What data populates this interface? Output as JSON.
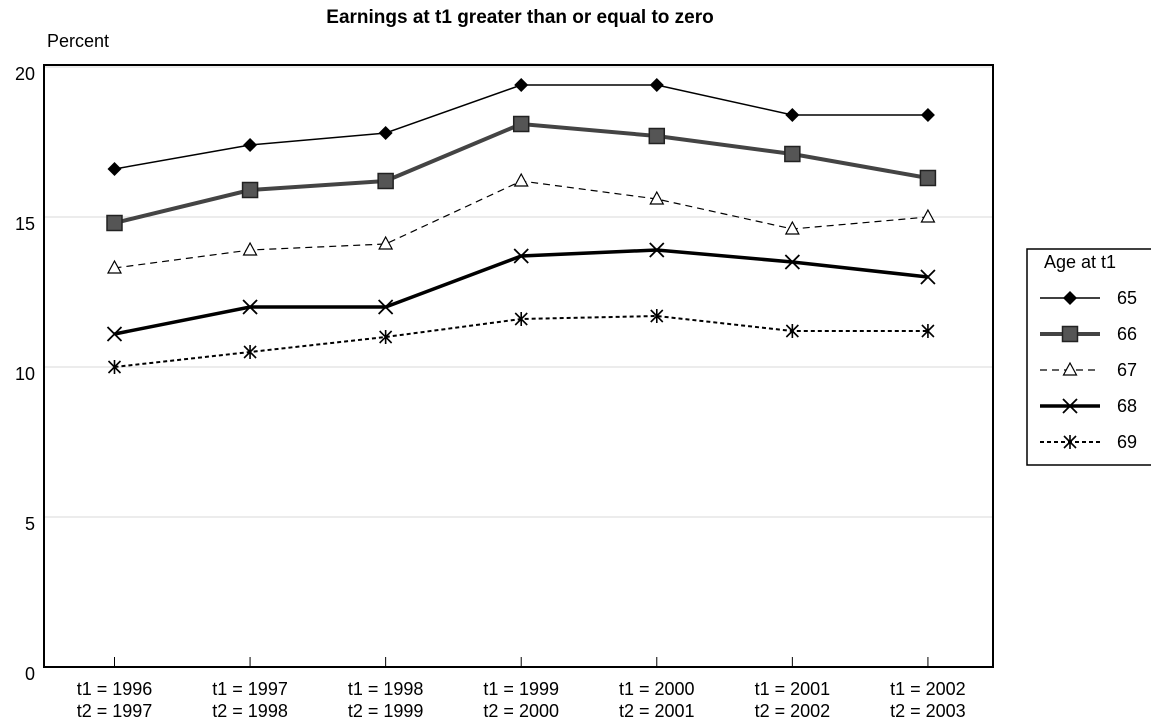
{
  "chart_data": {
    "type": "line",
    "title": "Earnings at t1 greater than or equal to zero",
    "y_label": "Percent",
    "categories": [
      [
        "t1 = 1996",
        "t2 = 1997"
      ],
      [
        "t1 = 1997",
        "t2 = 1998"
      ],
      [
        "t1 = 1998",
        "t2 = 1999"
      ],
      [
        "t1 = 1999",
        "t2 = 2000"
      ],
      [
        "t1 = 2000",
        "t2 = 2001"
      ],
      [
        "t1 = 2001",
        "t2 = 2002"
      ],
      [
        "t1 = 2002",
        "t2 = 2003"
      ]
    ],
    "ylim": [
      0,
      20
    ],
    "yticks": [
      0,
      5,
      10,
      15,
      20
    ],
    "grid": true,
    "legend_title": "Age at t1",
    "legend": "right",
    "series": [
      {
        "name": "65",
        "color": "#000000",
        "marker": "diamond",
        "line_style": "solid",
        "line_width": 1.5,
        "values": [
          16.6,
          17.4,
          17.8,
          19.4,
          19.4,
          18.4,
          18.4
        ]
      },
      {
        "name": "66",
        "color": "#444444",
        "marker": "square",
        "line_style": "solid",
        "line_width": 4,
        "values": [
          14.8,
          15.9,
          16.2,
          18.1,
          17.7,
          17.1,
          16.3
        ]
      },
      {
        "name": "67",
        "color": "#000000",
        "marker": "triangle",
        "line_style": "dashed",
        "line_width": 1.2,
        "values": [
          13.3,
          13.9,
          14.1,
          16.2,
          15.6,
          14.6,
          15.0
        ]
      },
      {
        "name": "68",
        "color": "#000000",
        "marker": "x",
        "line_style": "solid",
        "line_width": 3.5,
        "values": [
          11.1,
          12.0,
          12.0,
          13.7,
          13.9,
          13.5,
          13.0
        ]
      },
      {
        "name": "69",
        "color": "#000000",
        "marker": "asterisk",
        "line_style": "dotted",
        "line_width": 2,
        "values": [
          10.0,
          10.5,
          11.0,
          11.6,
          11.7,
          11.2,
          11.2
        ]
      }
    ]
  }
}
